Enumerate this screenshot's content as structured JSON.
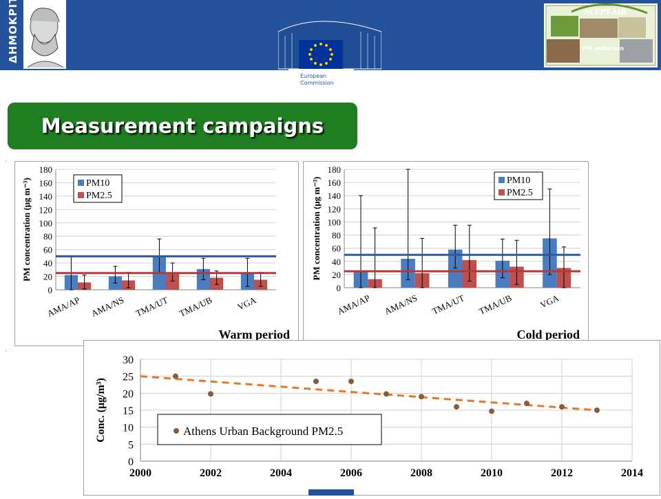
{
  "header": {
    "demokritos_logo_text": "ΔΗΜΟΚΡΙΤΟΣ",
    "ec_logo_text": [
      "European",
      "Commission"
    ],
    "acept_logo_title": "ACEPT-AIR",
    "acept_logo_sub": "PM reduction"
  },
  "title": "Measurement campaigns",
  "colors": {
    "header_blue": "#24539c",
    "title_green": "#1f7d22",
    "pm10": "#4a7cbf",
    "pm25": "#c0504d",
    "pm10_limit": "#2e5a9b",
    "pm25_limit": "#b03a3a",
    "trend_dots": "#8a5a3a",
    "trend_line": "#e87722"
  },
  "chart_data": [
    {
      "type": "bar",
      "caption": "Warm period",
      "ylabel": "PM concentration (μg m⁻³)",
      "ylim": [
        0,
        180
      ],
      "yticks": [
        "0",
        "20",
        "40",
        "60",
        "80",
        "100",
        "120",
        "140",
        "160",
        "180"
      ],
      "categories": [
        "AMA/AP",
        "AMA/NS",
        "TMA/UT",
        "TMA/UB",
        "VGA"
      ],
      "series": [
        {
          "name": "PM10",
          "values": [
            22,
            20,
            51,
            31,
            25
          ],
          "err_high": [
            49,
            35,
            76,
            47,
            47
          ],
          "err_low": [
            0,
            10,
            25,
            15,
            5
          ]
        },
        {
          "name": "PM2.5",
          "values": [
            11,
            14,
            26,
            18,
            15
          ],
          "err_high": [
            22,
            26,
            40,
            28,
            26
          ],
          "err_low": [
            1,
            3,
            13,
            8,
            5
          ]
        }
      ],
      "reference_lines": [
        50,
        25
      ],
      "grid": true,
      "legend": "top-left"
    },
    {
      "type": "bar",
      "caption": "Cold period",
      "ylabel": "PM concentration (μg m⁻³)",
      "ylim": [
        0,
        180
      ],
      "yticks": [
        "0",
        "20",
        "40",
        "60",
        "80",
        "100",
        "120",
        "140",
        "160",
        "180"
      ],
      "categories": [
        "AMA/AP",
        "AMA/NS",
        "TMA/UT",
        "TMA/UB",
        "VGA"
      ],
      "series": [
        {
          "name": "PM10",
          "values": [
            25,
            44,
            58,
            41,
            75
          ],
          "err_high": [
            140,
            180,
            95,
            74,
            150
          ],
          "err_low": [
            0,
            12,
            30,
            15,
            20
          ]
        },
        {
          "name": "PM2.5",
          "values": [
            13,
            22,
            42,
            32,
            30
          ],
          "err_high": [
            91,
            75,
            95,
            72,
            62
          ],
          "err_low": [
            0,
            0,
            10,
            5,
            0
          ]
        }
      ],
      "reference_lines": [
        50,
        25
      ],
      "grid": true,
      "legend": "top-right"
    },
    {
      "type": "scatter",
      "ylabel": "Conc. (μg/m³)",
      "xlim": [
        2000,
        2014
      ],
      "ylim": [
        0,
        30
      ],
      "xticks": [
        "2000",
        "2002",
        "2004",
        "2006",
        "2008",
        "2010",
        "2012",
        "2014"
      ],
      "yticks": [
        "0",
        "5",
        "10",
        "15",
        "20",
        "25",
        "30"
      ],
      "series": [
        {
          "name": "Athens Urban Background PM2.5",
          "x": [
            2001,
            2002,
            2005,
            2006,
            2007,
            2008,
            2009,
            2010,
            2011,
            2012,
            2013
          ],
          "y": [
            25.0,
            19.8,
            23.5,
            23.5,
            19.8,
            19.0,
            16.0,
            14.7,
            17.0,
            16.0,
            15.0
          ]
        }
      ],
      "trendline": {
        "from": [
          2000,
          25.0
        ],
        "to": [
          2013,
          15.0
        ]
      },
      "grid": true,
      "legend": "bottom-left"
    }
  ]
}
